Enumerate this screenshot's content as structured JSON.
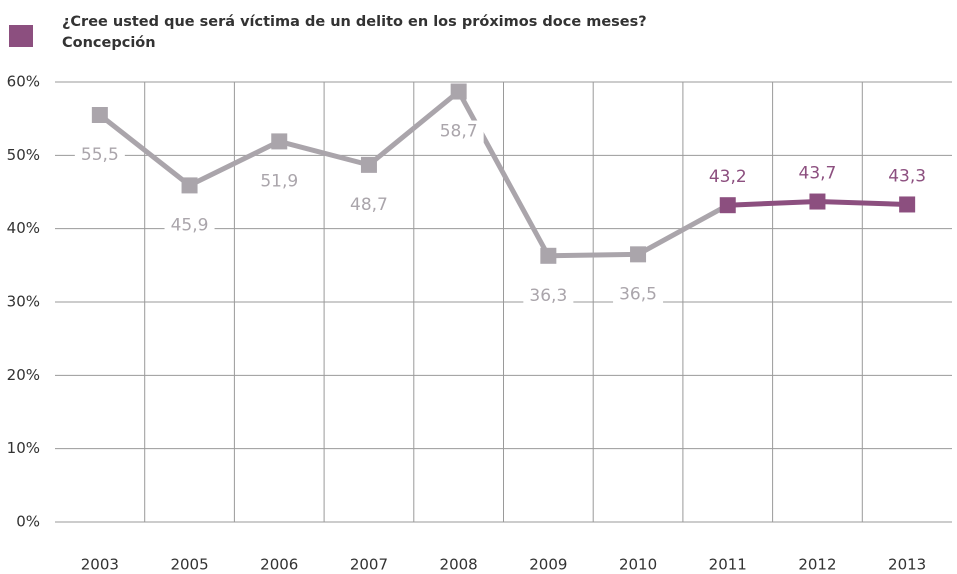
{
  "chart_data": {
    "type": "line",
    "title": "¿Cree usted que será víctima de un delito en los próximos doce meses?",
    "subtitle": "Concepción",
    "legend_color": "#8c4f7f",
    "categories": [
      "2003",
      "2005",
      "2006",
      "2007",
      "2008",
      "2009",
      "2010",
      "2011",
      "2012",
      "2013"
    ],
    "values": [
      55.5,
      45.9,
      51.9,
      48.7,
      58.7,
      36.3,
      36.5,
      43.2,
      43.7,
      43.3
    ],
    "value_labels": [
      "55,5",
      "45,9",
      "51,9",
      "48,7",
      "58,7",
      "36,3",
      "36,5",
      "43,2",
      "43,7",
      "43,3"
    ],
    "colors": [
      "#aaa5ab",
      "#aaa5ab",
      "#aaa5ab",
      "#aaa5ab",
      "#aaa5ab",
      "#aaa5ab",
      "#aaa5ab",
      "#8c4f7f",
      "#8c4f7f",
      "#8c4f7f"
    ],
    "ylim": [
      0,
      60
    ],
    "yticks": [
      {
        "value": 0,
        "label": "0%"
      },
      {
        "value": 10,
        "label": "10%"
      },
      {
        "value": 20,
        "label": "20%"
      },
      {
        "value": 30,
        "label": "30%"
      },
      {
        "value": 40,
        "label": "40%"
      },
      {
        "value": 50,
        "label": "50%"
      },
      {
        "value": 60,
        "label": "60%"
      }
    ],
    "grid": true
  }
}
